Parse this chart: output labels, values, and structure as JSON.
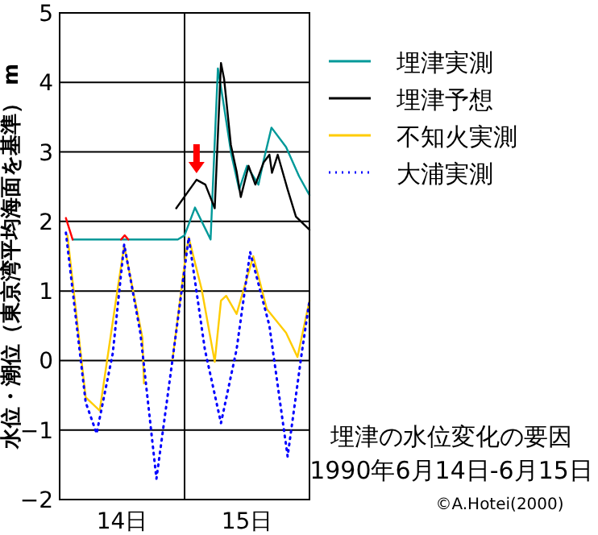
{
  "chart_data": {
    "type": "line",
    "ylabel": "水位・潮位（東京湾平均海面を基準） m",
    "xlim": [
      "1990-06-14",
      "1990-06-16"
    ],
    "xticks": [
      {
        "value": "1990-06-14T12:00",
        "label": "14日"
      },
      {
        "value": "1990-06-15T12:00",
        "label": "15日"
      }
    ],
    "ylim": [
      -2,
      5
    ],
    "yticks": [
      -2,
      -1,
      0,
      1,
      2,
      3,
      4,
      5
    ],
    "grid": "y",
    "legend": "top right",
    "ref_lines": [
      {
        "axis": "x",
        "value": "1990-06-15",
        "color": "#000000"
      }
    ],
    "series": [
      {
        "name": "埋津実測",
        "color": "#009999",
        "line_style": "solid",
        "x": [
          "1990-06-14T02:30",
          "1990-06-14T22:42",
          "1990-06-15T00:00",
          "1990-06-15T02:00",
          "1990-06-15T05:00",
          "1990-06-15T06:24",
          "1990-06-15T07:24",
          "1990-06-15T09:00",
          "1990-06-15T10:30",
          "1990-06-15T12:00",
          "1990-06-15T13:12",
          "1990-06-15T14:12",
          "1990-06-15T15:12",
          "1990-06-15T16:42",
          "1990-06-15T19:30",
          "1990-06-15T22:00",
          "1990-06-16T00:00"
        ],
        "values": [
          1.74,
          1.74,
          1.8,
          2.2,
          1.74,
          4.2,
          3.74,
          2.96,
          2.46,
          2.8,
          2.65,
          2.53,
          2.88,
          3.35,
          3.07,
          2.65,
          2.38
        ]
      },
      {
        "color": "#ff0000",
        "line_style": "solid",
        "x": [
          "1990-06-14T01:12",
          "1990-06-14T02:30"
        ],
        "values": [
          2.05,
          1.74
        ]
      },
      {
        "color": "#ff0000",
        "line_style": "solid",
        "x": [
          "1990-06-14T11:48",
          "1990-06-14T12:30",
          "1990-06-14T13:12"
        ],
        "values": [
          1.74,
          1.8,
          1.74
        ]
      },
      {
        "name": "埋津予想",
        "color": "#000000",
        "line_style": "solid",
        "x": [
          "1990-06-14T22:24",
          "1990-06-15T02:18",
          "1990-06-15T04:00",
          "1990-06-15T05:48",
          "1990-06-15T07:00",
          "1990-06-15T07:36",
          "1990-06-15T08:54",
          "1990-06-15T10:00",
          "1990-06-15T10:48",
          "1990-06-15T12:18",
          "1990-06-15T13:36",
          "1990-06-15T15:12",
          "1990-06-15T16:18",
          "1990-06-15T16:48",
          "1990-06-15T17:54",
          "1990-06-15T19:48",
          "1990-06-15T21:24",
          "1990-06-16T00:00"
        ],
        "values": [
          2.19,
          2.6,
          2.53,
          2.19,
          4.28,
          4.05,
          3.1,
          2.72,
          2.35,
          2.8,
          2.53,
          2.85,
          2.96,
          2.7,
          2.96,
          2.46,
          2.07,
          1.88
        ]
      },
      {
        "name": "不知火実測",
        "color": "#ffcc00",
        "line_style": "solid",
        "x": [
          "1990-06-14T01:30",
          "1990-06-14T05:00",
          "1990-06-14T07:42",
          "1990-06-14T10:48",
          "1990-06-14T12:24",
          "1990-06-14T15:54",
          "1990-06-14T16:12"
        ],
        "values": [
          1.8,
          -0.53,
          -0.72,
          0.86,
          1.65,
          0.33,
          -0.33
        ]
      },
      {
        "color": "#ffcc00",
        "line_style": "solid",
        "x": [
          "1990-06-14T21:42",
          "1990-06-15T00:12",
          "1990-06-15T00:48",
          "1990-06-15T03:18",
          "1990-06-15T05:48",
          "1990-06-15T07:00",
          "1990-06-15T08:00",
          "1990-06-15T10:00",
          "1990-06-15T13:12",
          "1990-06-15T15:48",
          "1990-06-15T19:30",
          "1990-06-15T21:42",
          "1990-06-16T00:00"
        ],
        "values": [
          0.02,
          1.5,
          1.77,
          1.02,
          -0.02,
          0.86,
          0.93,
          0.67,
          1.5,
          0.74,
          0.4,
          0.05,
          0.86
        ]
      },
      {
        "name": "大浦実測",
        "color": "#0000ff",
        "line_style": "dotted",
        "x": [
          "1990-06-14T01:12",
          "1990-06-14T05:00",
          "1990-06-14T07:06",
          "1990-06-14T10:12",
          "1990-06-14T12:24",
          "1990-06-14T15:30",
          "1990-06-14T18:36",
          "1990-06-14T21:42",
          "1990-06-15T00:48",
          "1990-06-15T03:54",
          "1990-06-15T07:00",
          "1990-06-15T10:00",
          "1990-06-15T12:36",
          "1990-06-15T16:18",
          "1990-06-15T19:48",
          "1990-06-15T22:30",
          "1990-06-16T00:00"
        ],
        "values": [
          1.84,
          -0.6,
          -1.05,
          0.1,
          1.67,
          0.4,
          -1.7,
          0.02,
          1.77,
          0.16,
          -0.9,
          0.16,
          1.56,
          0.5,
          -1.38,
          0.1,
          0.86
        ]
      }
    ],
    "annotations": [
      "埋津の水位変化の要因",
      "1990年6月14日-6月15日",
      "©A.Hotei(2000)"
    ]
  }
}
